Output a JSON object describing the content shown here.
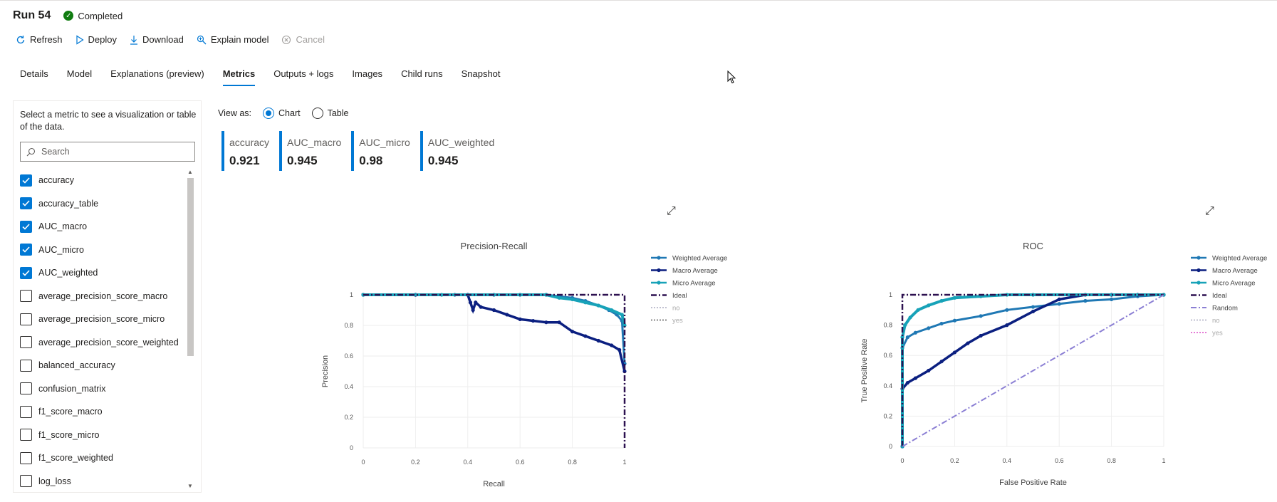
{
  "header": {
    "run_title": "Run 54",
    "status": "Completed"
  },
  "toolbar": {
    "refresh": "Refresh",
    "deploy": "Deploy",
    "download": "Download",
    "explain": "Explain model",
    "cancel": "Cancel"
  },
  "tabs": [
    "Details",
    "Model",
    "Explanations (preview)",
    "Metrics",
    "Outputs + logs",
    "Images",
    "Child runs",
    "Snapshot"
  ],
  "active_tab": "Metrics",
  "panel": {
    "description": "Select a metric to see a visualization or table of the data.",
    "search_placeholder": "Search",
    "metrics": [
      {
        "label": "accuracy",
        "checked": true
      },
      {
        "label": "accuracy_table",
        "checked": true
      },
      {
        "label": "AUC_macro",
        "checked": true
      },
      {
        "label": "AUC_micro",
        "checked": true
      },
      {
        "label": "AUC_weighted",
        "checked": true
      },
      {
        "label": "average_precision_score_macro",
        "checked": false
      },
      {
        "label": "average_precision_score_micro",
        "checked": false
      },
      {
        "label": "average_precision_score_weighted",
        "checked": false
      },
      {
        "label": "balanced_accuracy",
        "checked": false
      },
      {
        "label": "confusion_matrix",
        "checked": false
      },
      {
        "label": "f1_score_macro",
        "checked": false
      },
      {
        "label": "f1_score_micro",
        "checked": false
      },
      {
        "label": "f1_score_weighted",
        "checked": false
      },
      {
        "label": "log_loss",
        "checked": false
      }
    ]
  },
  "view_as": {
    "label": "View as:",
    "chart": "Chart",
    "table": "Table",
    "selected": "Chart"
  },
  "cards": [
    {
      "name": "accuracy",
      "value": "0.921"
    },
    {
      "name": "AUC_macro",
      "value": "0.945"
    },
    {
      "name": "AUC_micro",
      "value": "0.98"
    },
    {
      "name": "AUC_weighted",
      "value": "0.945"
    }
  ],
  "colors": {
    "accent": "#0078d4",
    "status_ok": "#107c10",
    "weighted": "#1f78b4",
    "macro": "#0b1f80",
    "micro": "#17a2b8",
    "ideal": "#2d1150",
    "random": "#8b7fd4",
    "no": "#c0c0d0",
    "yes_pr": "#888888",
    "yes_roc": "#e57ad6"
  },
  "chart_data": [
    {
      "type": "line",
      "title": "Precision-Recall",
      "xlabel": "Recall",
      "ylabel": "Precision",
      "xlim": [
        0,
        1
      ],
      "ylim": [
        0,
        1
      ],
      "xticks": [
        "0",
        "0.2",
        "0.4",
        "0.6",
        "0.8",
        "1"
      ],
      "yticks": [
        "0",
        "0.2",
        "0.4",
        "0.6",
        "0.8",
        "1"
      ],
      "grid": true,
      "legend_position": "top-right",
      "series": [
        {
          "name": "Weighted Average",
          "style": "line-markers",
          "x": [
            0,
            0.2,
            0.35,
            0.5,
            0.6,
            0.7,
            0.75,
            0.8,
            0.85,
            0.9,
            0.94,
            0.97,
            0.99,
            1.0
          ],
          "y": [
            1,
            1,
            1,
            1,
            1,
            1,
            0.99,
            0.98,
            0.96,
            0.93,
            0.9,
            0.87,
            0.83,
            0.55
          ]
        },
        {
          "name": "Macro Average",
          "style": "line-markers",
          "x": [
            0,
            0.2,
            0.4,
            0.41,
            0.42,
            0.43,
            0.45,
            0.5,
            0.55,
            0.6,
            0.65,
            0.7,
            0.75,
            0.8,
            0.85,
            0.9,
            0.95,
            0.98,
            1.0
          ],
          "y": [
            1,
            1,
            1,
            0.95,
            0.9,
            0.95,
            0.92,
            0.9,
            0.87,
            0.84,
            0.83,
            0.82,
            0.82,
            0.76,
            0.73,
            0.7,
            0.67,
            0.64,
            0.5
          ]
        },
        {
          "name": "Micro Average",
          "style": "line-markers",
          "x": [
            0,
            0.3,
            0.6,
            0.7,
            0.75,
            0.8,
            0.85,
            0.9,
            0.95,
            0.99,
            1.0
          ],
          "y": [
            1,
            1,
            1,
            1,
            0.98,
            0.97,
            0.95,
            0.93,
            0.9,
            0.87,
            0.8
          ]
        },
        {
          "name": "Ideal",
          "style": "dash-dot",
          "x": [
            0,
            1,
            1
          ],
          "y": [
            1,
            1,
            0
          ]
        },
        {
          "name": "no",
          "style": "dotted",
          "x": [],
          "y": []
        },
        {
          "name": "yes",
          "style": "dotted",
          "x": [],
          "y": []
        }
      ]
    },
    {
      "type": "line",
      "title": "ROC",
      "xlabel": "False Positive Rate",
      "ylabel": "True Positive Rate",
      "xlim": [
        0,
        1
      ],
      "ylim": [
        0,
        1
      ],
      "xticks": [
        "0",
        "0.2",
        "0.4",
        "0.6",
        "0.8",
        "1"
      ],
      "yticks": [
        "0",
        "0.2",
        "0.4",
        "0.6",
        "0.8",
        "1"
      ],
      "grid": true,
      "legend_position": "top-right",
      "series": [
        {
          "name": "Weighted Average",
          "style": "line-markers",
          "x": [
            0,
            0.0,
            0.02,
            0.05,
            0.1,
            0.15,
            0.2,
            0.3,
            0.4,
            0.5,
            0.6,
            0.7,
            0.8,
            0.9,
            1.0
          ],
          "y": [
            0,
            0.65,
            0.72,
            0.75,
            0.78,
            0.81,
            0.83,
            0.86,
            0.9,
            0.92,
            0.94,
            0.96,
            0.97,
            0.99,
            1.0
          ]
        },
        {
          "name": "Macro Average",
          "style": "line-markers",
          "x": [
            0,
            0.0,
            0.02,
            0.05,
            0.1,
            0.15,
            0.2,
            0.25,
            0.3,
            0.4,
            0.5,
            0.6,
            0.7,
            0.8,
            0.9,
            1.0
          ],
          "y": [
            0,
            0.38,
            0.42,
            0.45,
            0.5,
            0.56,
            0.62,
            0.68,
            0.73,
            0.8,
            0.89,
            0.97,
            1.0,
            1.0,
            1.0,
            1.0
          ]
        },
        {
          "name": "Micro Average",
          "style": "line-markers",
          "x": [
            0,
            0.0,
            0.01,
            0.03,
            0.06,
            0.1,
            0.15,
            0.2,
            0.3,
            0.4,
            0.5,
            0.7,
            1.0
          ],
          "y": [
            0,
            0.72,
            0.8,
            0.85,
            0.9,
            0.93,
            0.96,
            0.98,
            0.99,
            1.0,
            1.0,
            1.0,
            1.0
          ]
        },
        {
          "name": "Ideal",
          "style": "dash-dot",
          "x": [
            0,
            0,
            1
          ],
          "y": [
            0,
            1,
            1
          ]
        },
        {
          "name": "Random",
          "style": "dash-dot",
          "x": [
            0,
            1
          ],
          "y": [
            0,
            1
          ]
        },
        {
          "name": "no",
          "style": "dotted",
          "x": [],
          "y": []
        },
        {
          "name": "yes",
          "style": "dotted",
          "x": [],
          "y": []
        }
      ]
    }
  ]
}
